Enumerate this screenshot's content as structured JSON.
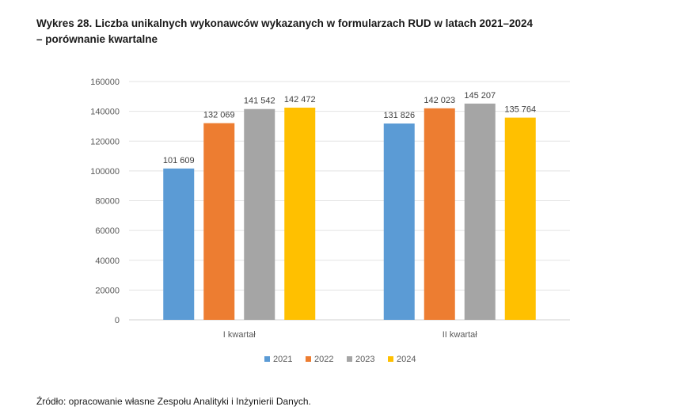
{
  "title_line1": "Wykres 28. Liczba unikalnych wykonawców wykazanych w formularzach RUD w latach 2021–2024",
  "title_line2": "– porównanie kwartalne",
  "source": "Źródło: opracowanie własne Zespołu Analityki i Inżynierii Danych.",
  "chart_data": {
    "type": "bar",
    "categories": [
      "I kwartał",
      "II kwartał"
    ],
    "series": [
      {
        "name": "2021",
        "color": "#5b9bd5",
        "values": [
          101609,
          131826
        ],
        "labels": [
          "101 609",
          "131 826"
        ]
      },
      {
        "name": "2022",
        "color": "#ed7d31",
        "values": [
          132069,
          142023
        ],
        "labels": [
          "132 069",
          "142 023"
        ]
      },
      {
        "name": "2023",
        "color": "#a5a5a5",
        "values": [
          141542,
          145207
        ],
        "labels": [
          "141 542",
          "145 207"
        ]
      },
      {
        "name": "2024",
        "color": "#ffc000",
        "values": [
          142472,
          135764
        ],
        "labels": [
          "142 472",
          "135 764"
        ]
      }
    ],
    "ylim": [
      0,
      160000
    ],
    "yticks": [
      0,
      20000,
      40000,
      60000,
      80000,
      100000,
      120000,
      140000,
      160000
    ],
    "ytick_labels": [
      "0",
      "20000",
      "40000",
      "60000",
      "80000",
      "100000",
      "120000",
      "140000",
      "160000"
    ],
    "grid": true,
    "legend": "bottom",
    "xlabel": "",
    "ylabel": ""
  }
}
